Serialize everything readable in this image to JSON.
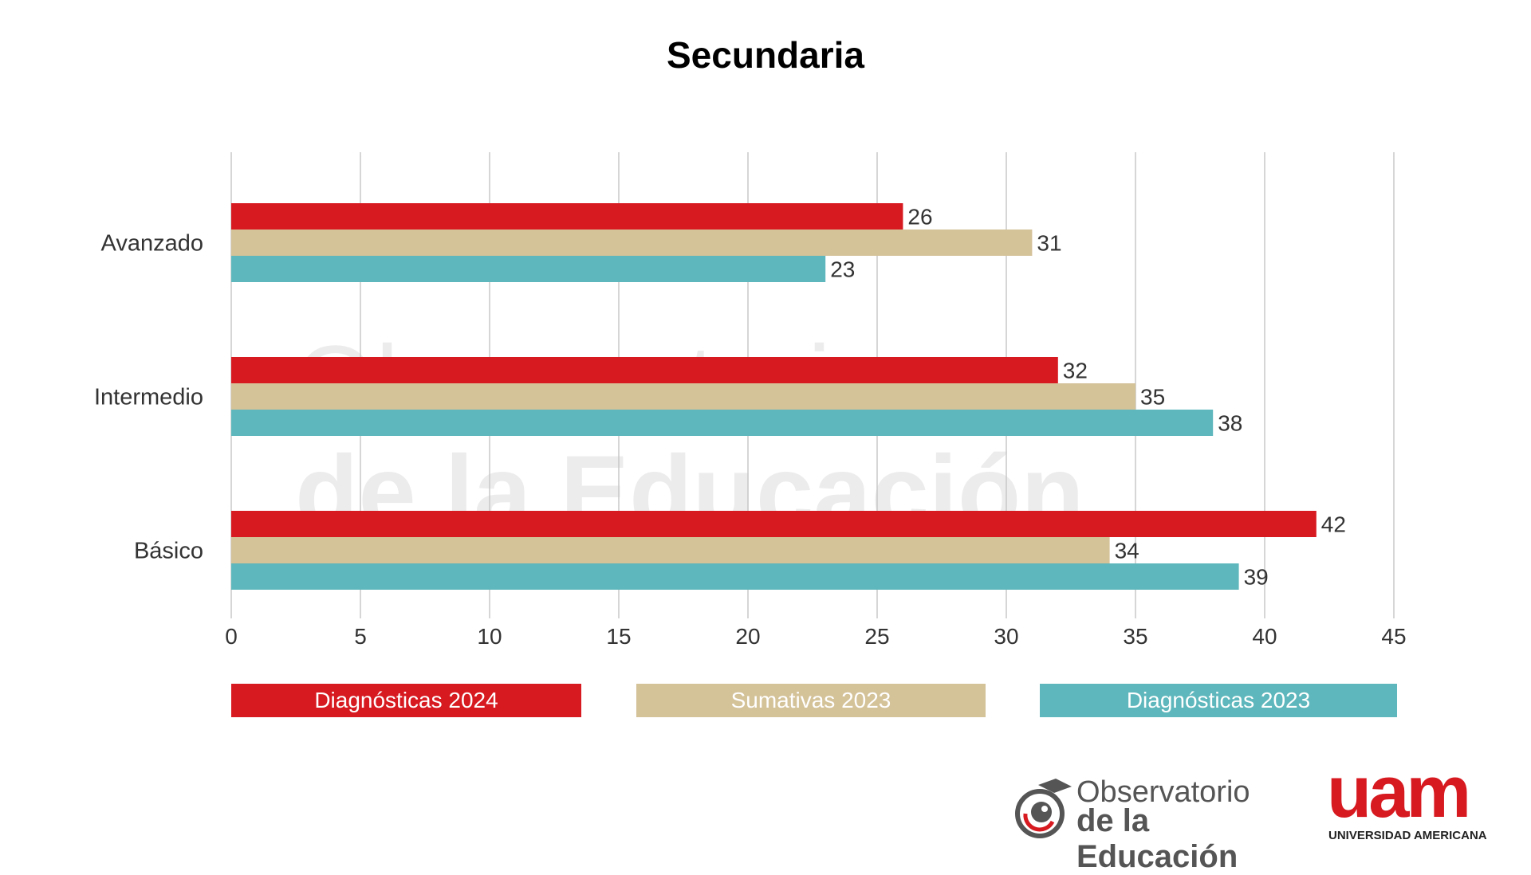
{
  "chart_data": {
    "type": "bar",
    "orientation": "horizontal",
    "title": "Secundaria",
    "categories": [
      "Avanzado",
      "Intermedio",
      "Básico"
    ],
    "series": [
      {
        "name": "Diagnósticas 2024",
        "color": "#d71920",
        "values": [
          26,
          32,
          42
        ]
      },
      {
        "name": "Sumativas 2023",
        "color": "#d4c299",
        "values": [
          31,
          35,
          34
        ]
      },
      {
        "name": "Diagnósticas 2023",
        "color": "#5eb7bc",
        "values": [
          23,
          38,
          39
        ]
      }
    ],
    "xlim": [
      0,
      45
    ],
    "xticks": [
      "0",
      "5",
      "10",
      "15",
      "20",
      "25",
      "30",
      "35",
      "40",
      "45"
    ],
    "grid": true,
    "legend_position": "bottom",
    "xlabel": "",
    "ylabel": ""
  },
  "watermark": {
    "line1": "Observatorio",
    "line2": "de la Educación"
  },
  "logos": {
    "observatorio": {
      "line1": "Observatorio",
      "line2": "de la Educación"
    },
    "uam": {
      "mark": "uam",
      "name": "UNIVERSIDAD AMERICANA"
    }
  }
}
